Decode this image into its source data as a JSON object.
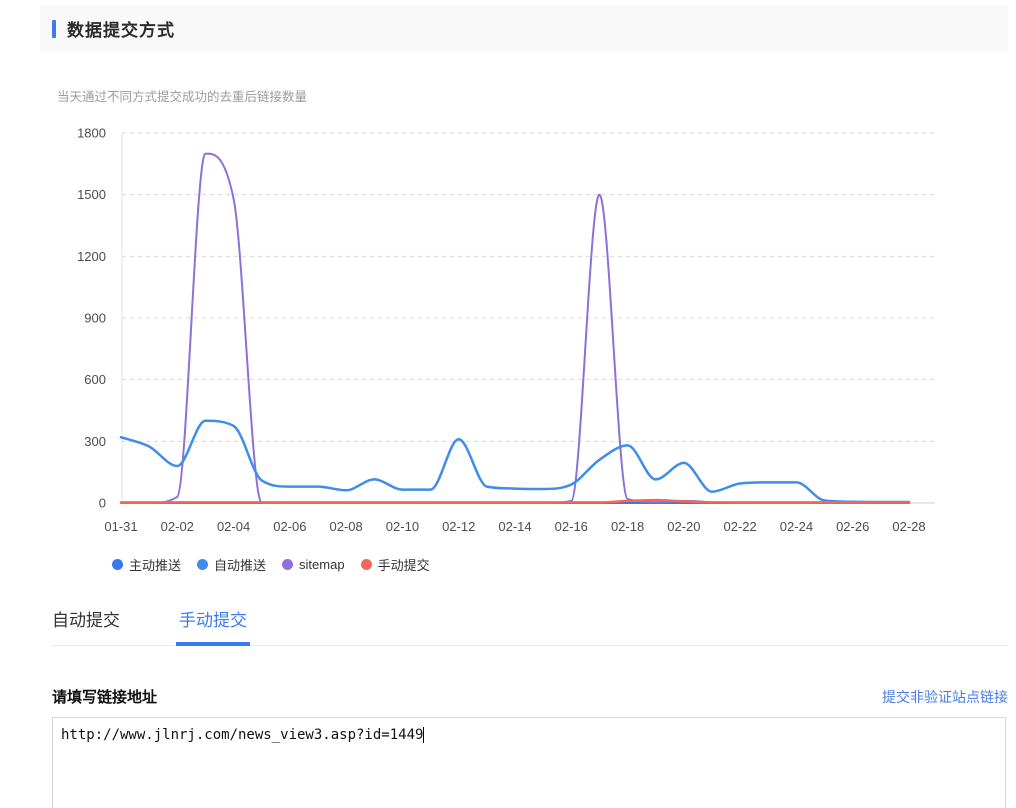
{
  "header": {
    "title": "数据提交方式"
  },
  "chart_data": {
    "type": "line",
    "title": "当天通过不同方式提交成功的去重后链接数量",
    "x": [
      "01-31",
      "02-01",
      "02-02",
      "02-03",
      "02-04",
      "02-05",
      "02-06",
      "02-07",
      "02-08",
      "02-09",
      "02-10",
      "02-11",
      "02-12",
      "02-13",
      "02-14",
      "02-15",
      "02-16",
      "02-17",
      "02-18",
      "02-19",
      "02-20",
      "02-21",
      "02-22",
      "02-23",
      "02-24",
      "02-25",
      "02-26",
      "02-27",
      "02-28"
    ],
    "x_tick_labels": [
      "01-31",
      "02-02",
      "02-04",
      "02-06",
      "02-08",
      "02-10",
      "02-12",
      "02-14",
      "02-16",
      "02-18",
      "02-20",
      "02-22",
      "02-24",
      "02-26",
      "02-28"
    ],
    "yticks": [
      0,
      300,
      600,
      900,
      1200,
      1500,
      1800
    ],
    "ylim": [
      0,
      1800
    ],
    "grid": "dashed-horizontal",
    "legend_position": "bottom-left",
    "series": [
      {
        "name": "主动推送",
        "color": "#3b76f0",
        "values": [
          0,
          0,
          0,
          0,
          0,
          0,
          0,
          0,
          0,
          0,
          0,
          0,
          0,
          0,
          0,
          0,
          0,
          0,
          0,
          0,
          0,
          0,
          0,
          0,
          0,
          0,
          0,
          0,
          0
        ]
      },
      {
        "name": "自动推送",
        "color": "#3f8ceb",
        "values": [
          320,
          275,
          180,
          400,
          375,
          110,
          80,
          80,
          62,
          115,
          65,
          65,
          310,
          80,
          70,
          68,
          90,
          210,
          280,
          115,
          195,
          55,
          95,
          100,
          100,
          12,
          6,
          5,
          5
        ]
      },
      {
        "name": "sitemap",
        "color": "#8d70d8",
        "values": [
          0,
          0,
          30,
          1700,
          1480,
          0,
          0,
          0,
          0,
          0,
          0,
          0,
          0,
          0,
          0,
          0,
          10,
          1500,
          20,
          5,
          10,
          4,
          0,
          0,
          0,
          0,
          0,
          0,
          0
        ]
      },
      {
        "name": "手动提交",
        "color": "#f0695a",
        "values": [
          3,
          3,
          3,
          3,
          3,
          3,
          3,
          3,
          3,
          3,
          3,
          3,
          3,
          3,
          3,
          3,
          3,
          3,
          10,
          14,
          8,
          3,
          3,
          3,
          3,
          3,
          3,
          3,
          3
        ]
      }
    ]
  },
  "tabs": {
    "items": [
      {
        "label": "自动提交",
        "active": false
      },
      {
        "label": "手动提交",
        "active": true
      }
    ]
  },
  "form": {
    "label": "请填写链接地址",
    "secondary_link": "提交非验证站点链接",
    "input_value": "http://www.jlnrj.com/news_view3.asp?id=1449"
  }
}
